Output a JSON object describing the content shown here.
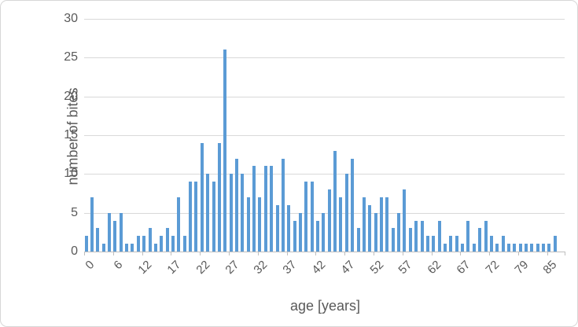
{
  "chart_data": {
    "type": "bar",
    "title": "",
    "xlabel": "age [years]",
    "ylabel": "number of bites",
    "ylim": [
      0,
      30
    ],
    "y_ticks": [
      0,
      5,
      10,
      15,
      20,
      25,
      30
    ],
    "x_tick_labels": [
      "0",
      "6",
      "12",
      "17",
      "22",
      "27",
      "32",
      "37",
      "42",
      "47",
      "52",
      "57",
      "62",
      "67",
      "72",
      "79",
      "85"
    ],
    "x_tick_interval": 5,
    "grid": true,
    "legend_position": "none",
    "bar_color": "#5b9bd5",
    "gridline_color": "#d9d9d9",
    "axis_line_color": "#bfbfbf",
    "text_color": "#595959",
    "values": [
      2,
      7,
      3,
      1,
      5,
      4,
      5,
      1,
      1,
      2,
      2,
      3,
      1,
      2,
      3,
      2,
      7,
      2,
      9,
      9,
      14,
      10,
      9,
      14,
      26,
      10,
      12,
      10,
      7,
      11,
      7,
      11,
      11,
      6,
      12,
      6,
      4,
      5,
      9,
      9,
      4,
      5,
      8,
      13,
      7,
      10,
      12,
      3,
      7,
      6,
      5,
      7,
      7,
      3,
      5,
      8,
      3,
      4,
      4,
      2,
      2,
      4,
      1,
      2,
      2,
      1,
      4,
      1,
      3,
      4,
      2,
      1,
      2,
      1,
      1,
      1,
      1,
      1,
      1,
      1,
      1,
      2
    ]
  }
}
